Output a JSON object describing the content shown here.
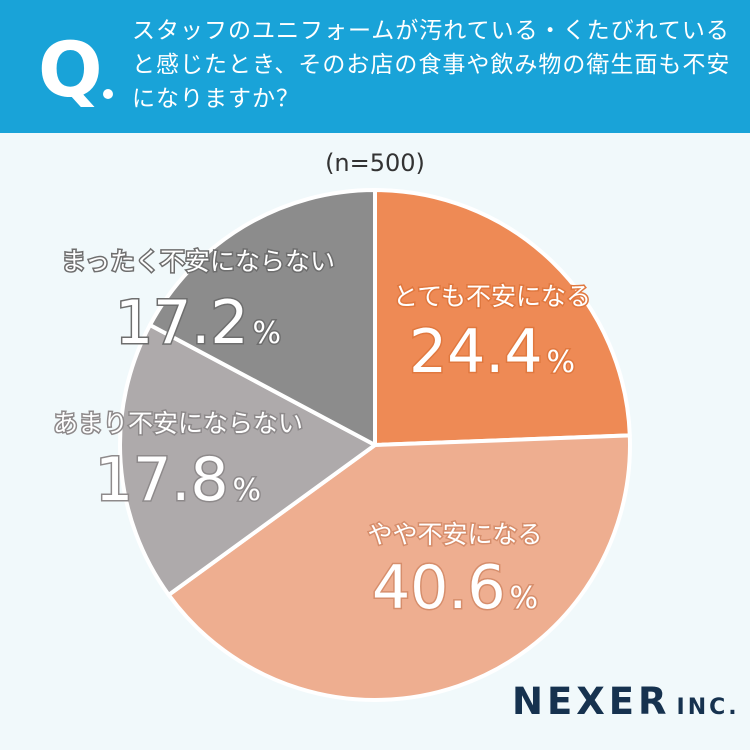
{
  "header": {
    "q_letter": "Q",
    "question": "スタッフのユニフォームが汚れている・くたびれていると感じたとき、そのお店の食事や飲み物の衛生面も不安になりますか？"
  },
  "sample": "(n=500)",
  "chart_data": {
    "type": "pie",
    "title": "",
    "slices": [
      {
        "label": "とても不安になる",
        "value": 24.4,
        "display": "24.4",
        "unit": "%",
        "color": "#ee8a55"
      },
      {
        "label": "やや不安になる",
        "value": 40.6,
        "display": "40.6",
        "unit": "%",
        "color": "#eeae90"
      },
      {
        "label": "あまり不安にならない",
        "value": 17.8,
        "display": "17.8",
        "unit": "%",
        "color": "#aeaaab"
      },
      {
        "label": "まったく不安にならない",
        "value": 17.2,
        "display": "17.2",
        "unit": "%",
        "color": "#8c8c8c"
      }
    ]
  },
  "logo": {
    "name": "NEXER",
    "suffix": "INC."
  }
}
